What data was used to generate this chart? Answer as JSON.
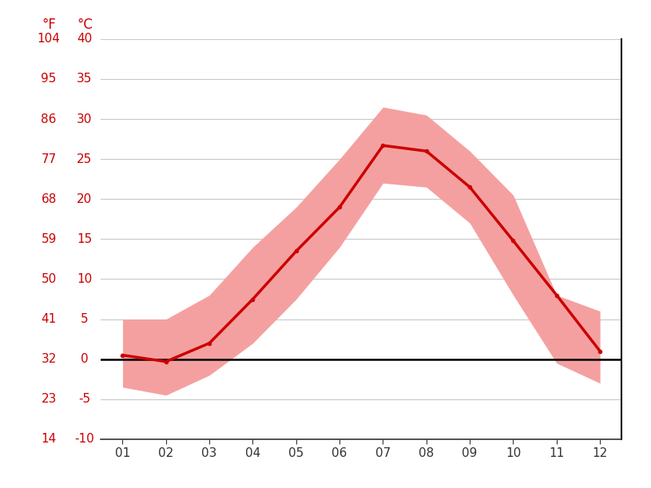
{
  "months": [
    1,
    2,
    3,
    4,
    5,
    6,
    7,
    8,
    9,
    10,
    11,
    12
  ],
  "month_labels": [
    "01",
    "02",
    "03",
    "04",
    "05",
    "06",
    "07",
    "08",
    "09",
    "10",
    "11",
    "12"
  ],
  "mean_c": [
    0.5,
    -0.3,
    2.0,
    7.5,
    13.5,
    19.0,
    26.7,
    26.0,
    21.5,
    14.8,
    8.0,
    1.0
  ],
  "high_c": [
    5.0,
    5.0,
    8.0,
    14.0,
    19.0,
    25.0,
    31.5,
    30.5,
    26.0,
    20.5,
    8.0,
    6.0
  ],
  "low_c": [
    -3.5,
    -4.5,
    -2.0,
    2.0,
    7.5,
    14.0,
    22.0,
    21.5,
    17.0,
    8.0,
    -0.5,
    -3.0
  ],
  "mean_line_color": "#cc0000",
  "band_color": "#f5a0a0",
  "zero_line_color": "#000000",
  "grid_color": "#c8c8c8",
  "text_color": "#cc0000",
  "yticks_c": [
    -10,
    -5,
    0,
    5,
    10,
    15,
    20,
    25,
    30,
    35,
    40
  ],
  "yticks_f": [
    14,
    23,
    32,
    41,
    50,
    59,
    68,
    77,
    86,
    95,
    104
  ],
  "label_f": "°F",
  "label_c": "°C",
  "ylim_c": [
    -10,
    40
  ],
  "figsize": [
    8.15,
    6.11
  ],
  "dpi": 100
}
